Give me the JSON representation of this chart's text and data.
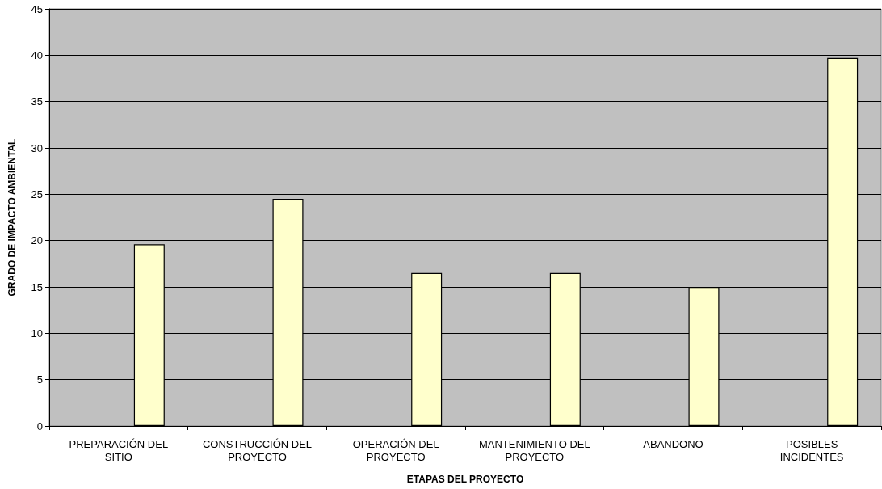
{
  "chart_data": {
    "type": "bar",
    "xlabel": "ETAPAS DEL PROYECTO",
    "ylabel": "GRADO DE IMPACTO AMBIENTAL",
    "categories": [
      "PREPARACIÓN DEL SITIO",
      "CONSTRUCCIÓN DEL PROYECTO",
      "OPERACIÓN DEL PROYECTO",
      "MANTENIMIENTO DEL PROYECTO",
      "ABANDONO",
      "POSIBLES INCIDENTES"
    ],
    "series": [
      {
        "color": "#ffffcc",
        "values": [
          19.6,
          24.5,
          16.5,
          16.5,
          15.0,
          39.7
        ]
      }
    ],
    "ylim": [
      0,
      45
    ],
    "yticks": [
      0,
      5,
      10,
      15,
      20,
      25,
      30,
      35,
      40,
      45
    ],
    "grid": "y"
  }
}
